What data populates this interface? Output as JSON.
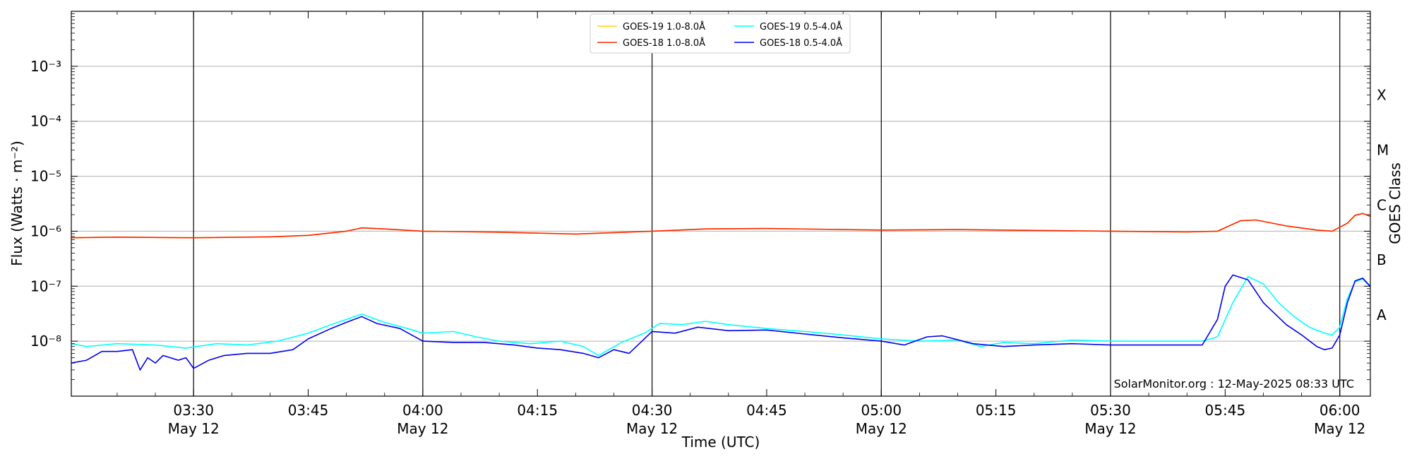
{
  "chart_data": {
    "type": "line",
    "title": "",
    "xlabel": "Time (UTC)",
    "ylabel": "Flux (Watts · m⁻²)",
    "right_label": "GOES Class",
    "credit": "SolarMonitor.org : 12-May-2025 08:33 UTC",
    "y_scale": "log",
    "ylim": [
      1e-09,
      0.01
    ],
    "xlim": [
      "03:14",
      "06:04"
    ],
    "x_ticks": [
      {
        "time": "03:30",
        "label": "03:30",
        "date": "May 12"
      },
      {
        "time": "03:45",
        "label": "03:45",
        "date": ""
      },
      {
        "time": "04:00",
        "label": "04:00",
        "date": "May 12"
      },
      {
        "time": "04:15",
        "label": "04:15",
        "date": ""
      },
      {
        "time": "04:30",
        "label": "04:30",
        "date": "May 12"
      },
      {
        "time": "04:45",
        "label": "04:45",
        "date": ""
      },
      {
        "time": "05:00",
        "label": "05:00",
        "date": "May 12"
      },
      {
        "time": "05:15",
        "label": "05:15",
        "date": ""
      },
      {
        "time": "05:30",
        "label": "05:30",
        "date": "May 12"
      },
      {
        "time": "05:45",
        "label": "05:45",
        "date": ""
      },
      {
        "time": "06:00",
        "label": "06:00",
        "date": "May 12"
      }
    ],
    "vertical_lines": [
      "03:30",
      "04:00",
      "04:30",
      "05:00",
      "05:30",
      "06:00"
    ],
    "y_ticks": [
      {
        "value": 1e-08,
        "label": "10⁻⁸"
      },
      {
        "value": 1e-07,
        "label": "10⁻⁷"
      },
      {
        "value": 1e-06,
        "label": "10⁻⁶"
      },
      {
        "value": 1e-05,
        "label": "10⁻⁵"
      },
      {
        "value": 0.0001,
        "label": "10⁻⁴"
      },
      {
        "value": 0.001,
        "label": "10⁻³"
      }
    ],
    "goes_classes": [
      {
        "label": "A",
        "value": 3e-08
      },
      {
        "label": "B",
        "value": 3e-07
      },
      {
        "label": "C",
        "value": 3e-06
      },
      {
        "label": "M",
        "value": 3e-05
      },
      {
        "label": "X",
        "value": 0.0003
      }
    ],
    "grid": true,
    "legend_position": "top-center",
    "series": [
      {
        "name": "GOES-19 1.0-8.0Å",
        "color": "#FFD700",
        "points": [
          [
            "03:14",
            7.6e-07
          ],
          [
            "03:20",
            7.8e-07
          ],
          [
            "03:30",
            7.6e-07
          ],
          [
            "03:40",
            7.9e-07
          ],
          [
            "03:45",
            8.4e-07
          ],
          [
            "03:50",
            1e-06
          ],
          [
            "03:52",
            1.15e-06
          ],
          [
            "03:55",
            1.1e-06
          ],
          [
            "04:00",
            1e-06
          ],
          [
            "04:10",
            9.6e-07
          ],
          [
            "04:20",
            8.9e-07
          ],
          [
            "04:30",
            1e-06
          ],
          [
            "04:37",
            1.1e-06
          ],
          [
            "04:45",
            1.12e-06
          ],
          [
            "05:00",
            1.05e-06
          ],
          [
            "05:10",
            1.07e-06
          ],
          [
            "05:30",
            1e-06
          ],
          [
            "05:40",
            9.7e-07
          ],
          [
            "05:44",
            1e-06
          ],
          [
            "05:47",
            1.55e-06
          ],
          [
            "05:49",
            1.6e-06
          ],
          [
            "05:53",
            1.25e-06
          ],
          [
            "05:57",
            1.05e-06
          ],
          [
            "05:59",
            1e-06
          ],
          [
            "06:01",
            1.4e-06
          ],
          [
            "06:02",
            1.95e-06
          ],
          [
            "06:03",
            2.1e-06
          ],
          [
            "06:05",
            1.65e-06
          ]
        ]
      },
      {
        "name": "GOES-18 1.0-8.0Å",
        "color": "#FF2200",
        "points": [
          [
            "03:14",
            7.6e-07
          ],
          [
            "03:20",
            7.8e-07
          ],
          [
            "03:30",
            7.6e-07
          ],
          [
            "03:40",
            7.9e-07
          ],
          [
            "03:45",
            8.4e-07
          ],
          [
            "03:50",
            1e-06
          ],
          [
            "03:52",
            1.15e-06
          ],
          [
            "03:55",
            1.1e-06
          ],
          [
            "04:00",
            1e-06
          ],
          [
            "04:10",
            9.6e-07
          ],
          [
            "04:20",
            8.9e-07
          ],
          [
            "04:30",
            1e-06
          ],
          [
            "04:37",
            1.1e-06
          ],
          [
            "04:45",
            1.12e-06
          ],
          [
            "05:00",
            1.05e-06
          ],
          [
            "05:10",
            1.07e-06
          ],
          [
            "05:30",
            1e-06
          ],
          [
            "05:40",
            9.7e-07
          ],
          [
            "05:44",
            1e-06
          ],
          [
            "05:47",
            1.55e-06
          ],
          [
            "05:49",
            1.6e-06
          ],
          [
            "05:53",
            1.25e-06
          ],
          [
            "05:57",
            1.05e-06
          ],
          [
            "05:59",
            1e-06
          ],
          [
            "06:01",
            1.4e-06
          ],
          [
            "06:02",
            1.95e-06
          ],
          [
            "06:03",
            2.1e-06
          ],
          [
            "06:05",
            1.65e-06
          ]
        ]
      },
      {
        "name": "GOES-19 0.5-4.0Å",
        "color": "#00FFFF",
        "points": [
          [
            "03:14",
            9e-09
          ],
          [
            "03:16",
            8e-09
          ],
          [
            "03:20",
            9e-09
          ],
          [
            "03:25",
            8.5e-09
          ],
          [
            "03:29",
            7.5e-09
          ],
          [
            "03:33",
            9e-09
          ],
          [
            "03:37",
            8.5e-09
          ],
          [
            "03:41",
            1e-08
          ],
          [
            "03:45",
            1.4e-08
          ],
          [
            "03:48",
            2e-08
          ],
          [
            "03:52",
            3.1e-08
          ],
          [
            "03:55",
            2.2e-08
          ],
          [
            "03:58",
            1.7e-08
          ],
          [
            "04:00",
            1.4e-08
          ],
          [
            "04:04",
            1.5e-08
          ],
          [
            "04:07",
            1.2e-08
          ],
          [
            "04:10",
            1e-08
          ],
          [
            "04:14",
            9e-09
          ],
          [
            "04:18",
            1e-08
          ],
          [
            "04:21",
            8e-09
          ],
          [
            "04:23",
            5.5e-09
          ],
          [
            "04:26",
            9.5e-09
          ],
          [
            "04:29",
            1.4e-08
          ],
          [
            "04:31",
            2.1e-08
          ],
          [
            "04:34",
            2e-08
          ],
          [
            "04:37",
            2.3e-08
          ],
          [
            "04:40",
            2e-08
          ],
          [
            "04:45",
            1.7e-08
          ],
          [
            "04:50",
            1.5e-08
          ],
          [
            "04:55",
            1.3e-08
          ],
          [
            "05:00",
            1.1e-08
          ],
          [
            "05:05",
            1e-08
          ],
          [
            "05:10",
            1.05e-08
          ],
          [
            "05:13",
            8e-09
          ],
          [
            "05:16",
            9.5e-09
          ],
          [
            "05:20",
            9e-09
          ],
          [
            "05:25",
            1.05e-08
          ],
          [
            "05:30",
            1e-08
          ],
          [
            "05:35",
            1e-08
          ],
          [
            "05:40",
            1e-08
          ],
          [
            "05:42",
            1e-08
          ],
          [
            "05:44",
            1.2e-08
          ],
          [
            "05:46",
            5e-08
          ],
          [
            "05:48",
            1.5e-07
          ],
          [
            "05:50",
            1.1e-07
          ],
          [
            "05:52",
            5e-08
          ],
          [
            "05:54",
            2.8e-08
          ],
          [
            "05:56",
            1.8e-08
          ],
          [
            "05:58",
            1.4e-08
          ],
          [
            "05:59",
            1.3e-08
          ],
          [
            "06:00",
            1.8e-08
          ],
          [
            "06:01",
            6e-08
          ],
          [
            "06:02",
            1.2e-07
          ],
          [
            "06:03",
            1.35e-07
          ],
          [
            "06:05",
            7e-08
          ]
        ]
      },
      {
        "name": "GOES-18 0.5-4.0Å",
        "color": "#0000EE",
        "points": [
          [
            "03:14",
            4e-09
          ],
          [
            "03:16",
            4.5e-09
          ],
          [
            "03:18",
            6.5e-09
          ],
          [
            "03:20",
            6.5e-09
          ],
          [
            "03:22",
            7e-09
          ],
          [
            "03:23",
            3e-09
          ],
          [
            "03:24",
            5e-09
          ],
          [
            "03:25",
            4e-09
          ],
          [
            "03:26",
            5.5e-09
          ],
          [
            "03:28",
            4.5e-09
          ],
          [
            "03:29",
            5e-09
          ],
          [
            "03:30",
            3.2e-09
          ],
          [
            "03:32",
            4.5e-09
          ],
          [
            "03:34",
            5.5e-09
          ],
          [
            "03:37",
            6e-09
          ],
          [
            "03:40",
            6e-09
          ],
          [
            "03:43",
            7e-09
          ],
          [
            "03:45",
            1.1e-08
          ],
          [
            "03:48",
            1.7e-08
          ],
          [
            "03:50",
            2.2e-08
          ],
          [
            "03:52",
            2.8e-08
          ],
          [
            "03:54",
            2.1e-08
          ],
          [
            "03:57",
            1.7e-08
          ],
          [
            "04:00",
            1e-08
          ],
          [
            "04:04",
            9.5e-09
          ],
          [
            "04:08",
            9.5e-09
          ],
          [
            "04:12",
            8.5e-09
          ],
          [
            "04:15",
            7.5e-09
          ],
          [
            "04:18",
            7e-09
          ],
          [
            "04:21",
            6e-09
          ],
          [
            "04:23",
            5e-09
          ],
          [
            "04:25",
            7e-09
          ],
          [
            "04:27",
            6e-09
          ],
          [
            "04:30",
            1.5e-08
          ],
          [
            "04:33",
            1.4e-08
          ],
          [
            "04:36",
            1.8e-08
          ],
          [
            "04:40",
            1.55e-08
          ],
          [
            "04:45",
            1.6e-08
          ],
          [
            "04:50",
            1.35e-08
          ],
          [
            "04:55",
            1.15e-08
          ],
          [
            "05:00",
            1e-08
          ],
          [
            "05:03",
            8.5e-09
          ],
          [
            "05:06",
            1.2e-08
          ],
          [
            "05:08",
            1.25e-08
          ],
          [
            "05:12",
            9e-09
          ],
          [
            "05:16",
            8e-09
          ],
          [
            "05:20",
            8.5e-09
          ],
          [
            "05:25",
            9e-09
          ],
          [
            "05:30",
            8.5e-09
          ],
          [
            "05:35",
            8.5e-09
          ],
          [
            "05:40",
            8.5e-09
          ],
          [
            "05:42",
            8.5e-09
          ],
          [
            "05:44",
            2.5e-08
          ],
          [
            "05:45",
            1e-07
          ],
          [
            "05:46",
            1.6e-07
          ],
          [
            "05:48",
            1.3e-07
          ],
          [
            "05:50",
            5e-08
          ],
          [
            "05:53",
            2e-08
          ],
          [
            "05:55",
            1.3e-08
          ],
          [
            "05:57",
            8e-09
          ],
          [
            "05:58",
            7e-09
          ],
          [
            "05:59",
            7.5e-09
          ],
          [
            "06:00",
            1.3e-08
          ],
          [
            "06:01",
            5e-08
          ],
          [
            "06:02",
            1.25e-07
          ],
          [
            "06:03",
            1.4e-07
          ],
          [
            "06:05",
            7e-08
          ]
        ]
      }
    ]
  }
}
